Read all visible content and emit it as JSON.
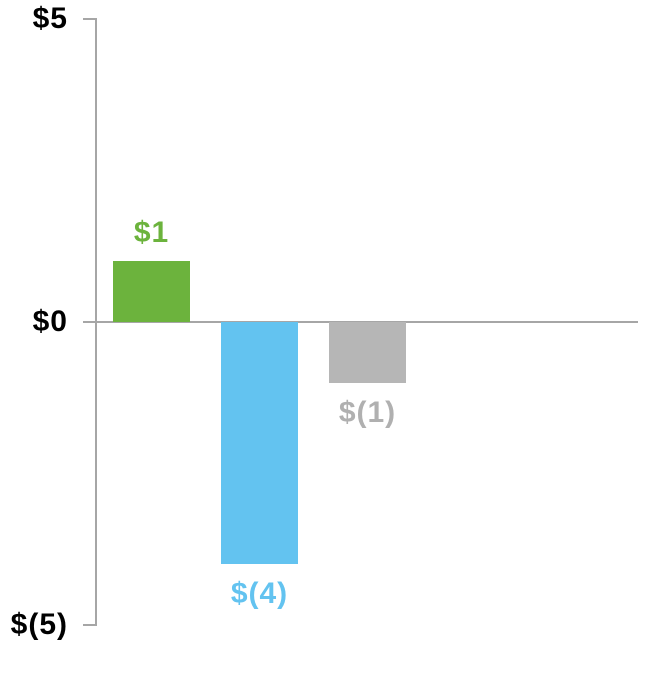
{
  "page": {
    "background_color": "#ffffff"
  },
  "chart_data": {
    "type": "bar",
    "title": "",
    "xlabel": "",
    "ylabel": "",
    "ylim": [
      -5,
      5
    ],
    "grid": false,
    "legend": "none",
    "axis_color": "#A6A6A6",
    "tick_label_color": "#000000",
    "values": [
      1,
      -4,
      -1
    ],
    "bars": [
      {
        "value": 1,
        "label": "$1",
        "color": "#6CB33D",
        "label_color": "#6CB33D"
      },
      {
        "value": -4,
        "label": "$(4)",
        "color": "#63C3F0",
        "label_color": "#63C3F0"
      },
      {
        "value": -1,
        "label": "$(1)",
        "color": "#B6B6B6",
        "label_color": "#B0B0B0"
      }
    ],
    "yticks": [
      {
        "value": 5,
        "label": "$5"
      },
      {
        "value": 0,
        "label": "$0"
      },
      {
        "value": -5,
        "label": "$(5)"
      }
    ]
  }
}
